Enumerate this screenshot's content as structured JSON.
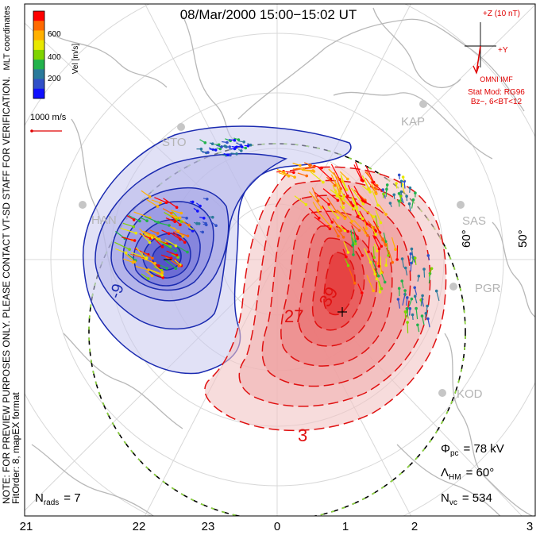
{
  "title": "08/Mar/2000  15:00−15:02  UT",
  "colorbar": {
    "label": "Vel [m/s]",
    "ticks": [
      "600",
      "400",
      "200"
    ],
    "colors": [
      "#ff0000",
      "#ff6a00",
      "#ffb000",
      "#e8e800",
      "#7fd400",
      "#22b24c",
      "#2a7a9a",
      "#3050c8",
      "#1010ff"
    ]
  },
  "side_labels": {
    "coords": "MLT coordinates",
    "note": "NOTE: FOR PREVIEW PURPOSES ONLY. PLEASE CONTACT VT-SD STAFF FOR VERIFICATION.",
    "fit": "FitOrder: 8,  mapEX format"
  },
  "scale_vector": {
    "label": "1000 m/s"
  },
  "imf": {
    "z_label": "+Z (10 nT)",
    "y_label": "+Y",
    "source": "OMNI IMF",
    "model_line1": "Stat Mod: RG96",
    "model_line2": "Bz−, 6<BT<12"
  },
  "stations": [
    "STO",
    "HAN",
    "KAP",
    "SAS",
    "PGR",
    "KOD"
  ],
  "lat_labels": [
    "60°",
    "50°"
  ],
  "contour_labels": [
    "-9",
    "27",
    "39",
    "3"
  ],
  "stats": {
    "phi_label": "Φ",
    "phi_sub": "pc",
    "phi_value": "= 78 kV",
    "lambda_label": "Λ",
    "lambda_sub": "HM",
    "lambda_value": "= 60°",
    "nvc_label": "N",
    "nvc_sub": "vc",
    "nvc_value": "= 534",
    "nrads_label": "N",
    "nrads_sub": "rads",
    "nrads_value": "= 7"
  },
  "mlt_axis": [
    "21",
    "22",
    "23",
    "0",
    "1",
    "2",
    "3"
  ],
  "colors": {
    "negative_cell": "#1a2ab0",
    "positive_cell": "#e01010",
    "imf_red": "#e00000",
    "station_gray": "#b4b4b4",
    "coastline": "#b8b8b8",
    "grid": "#d8d8d8"
  }
}
